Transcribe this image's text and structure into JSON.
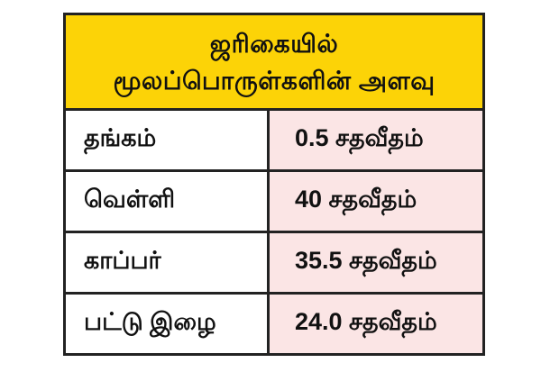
{
  "colors": {
    "page_bg": "#FFFFFF",
    "header_bg": "#FCD307",
    "material_cell_bg": "#FFFFFF",
    "amount_cell_bg": "#FBE5E5",
    "border": "#222222",
    "text": "#111111"
  },
  "header": {
    "line1": "ஜரிகையில்",
    "line2": "மூலப்பொருள்களின் அளவு"
  },
  "table": {
    "rows": [
      {
        "material": "தங்கம்",
        "amount": "0.5 சதவீதம்"
      },
      {
        "material": "வெள்ளி",
        "amount": "40 சதவீதம்"
      },
      {
        "material": "காப்பர்",
        "amount": "35.5 சதவீதம்"
      },
      {
        "material": "பட்டு இழை",
        "amount": "24.0 சதவீதம்"
      }
    ]
  },
  "chart_data": {
    "type": "table",
    "title": "ஜரிகையில் மூலப்பொருள்களின் அளவு",
    "categories": [
      "தங்கம்",
      "வெள்ளி",
      "காப்பர்",
      "பட்டு இழை"
    ],
    "values_percent": [
      0.5,
      40,
      35.5,
      24.0
    ],
    "unit_label": "சதவீதம்",
    "rows": [
      [
        "தங்கம்",
        "0.5 சதவீதம்"
      ],
      [
        "வெள்ளி",
        "40 சதவீதம்"
      ],
      [
        "காப்பர்",
        "35.5 சதவீதம்"
      ],
      [
        "பட்டு இழை",
        "24.0 சதவீதம்"
      ]
    ],
    "layout": {
      "header_background": "#FCD307",
      "value_column_background": "#FBE5E5",
      "grid": true,
      "legend": "none"
    }
  }
}
